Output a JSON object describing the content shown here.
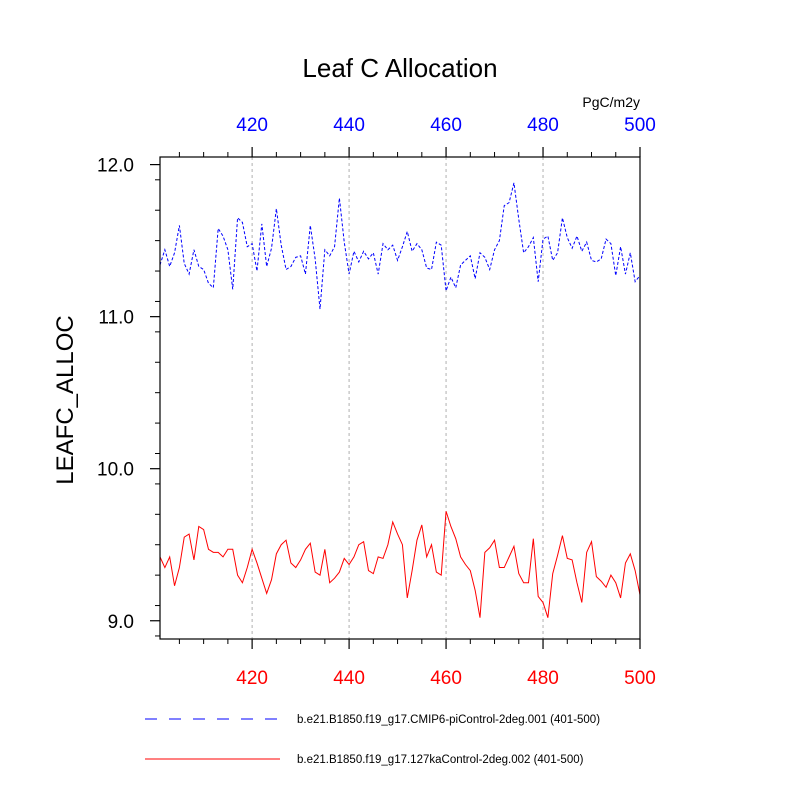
{
  "chart_data": {
    "type": "line",
    "title": "Leaf C Allocation",
    "ylabel": "LEAFC_ALLOC",
    "units_label": "PgC/m2y",
    "xlim": [
      401,
      500
    ],
    "ylim": [
      8.88,
      12.05
    ],
    "x_ticks": [
      420,
      440,
      460,
      480,
      500
    ],
    "x_tick_labels": [
      "420",
      "440",
      "460",
      "480",
      "500"
    ],
    "y_ticks": [
      9.0,
      10.0,
      11.0,
      12.0
    ],
    "y_tick_labels": [
      "9.0",
      "10.0",
      "11.0",
      "12.0"
    ],
    "colors": {
      "top_axis": "#0000ff",
      "bottom_axis": "#ff0000",
      "grid": "#b0b0b0",
      "axis": "#000000"
    },
    "series": [
      {
        "name": "b.e21.B1850.f19_g17.CMIP6-piControl-2deg.001 (401-500)",
        "color": "#0000ff",
        "dash": "dashed",
        "start_year": 401,
        "values": [
          11.34,
          11.44,
          11.33,
          11.42,
          11.6,
          11.35,
          11.28,
          11.44,
          11.33,
          11.31,
          11.22,
          11.19,
          11.58,
          11.53,
          11.44,
          11.18,
          11.65,
          11.62,
          11.46,
          11.48,
          11.3,
          11.61,
          11.33,
          11.45,
          11.71,
          11.47,
          11.31,
          11.33,
          11.39,
          11.4,
          11.28,
          11.6,
          11.38,
          11.05,
          11.44,
          11.4,
          11.46,
          11.78,
          11.49,
          11.28,
          11.43,
          11.36,
          11.43,
          11.38,
          11.42,
          11.28,
          11.48,
          11.44,
          11.47,
          11.37,
          11.46,
          11.56,
          11.43,
          11.48,
          11.44,
          11.32,
          11.31,
          11.49,
          11.47,
          11.17,
          11.26,
          11.19,
          11.34,
          11.37,
          11.4,
          11.25,
          11.42,
          11.39,
          11.31,
          11.44,
          11.5,
          11.73,
          11.75,
          11.88,
          11.64,
          11.42,
          11.46,
          11.52,
          11.23,
          11.51,
          11.53,
          11.37,
          11.42,
          11.65,
          11.52,
          11.45,
          11.53,
          11.43,
          11.49,
          11.37,
          11.36,
          11.38,
          11.51,
          11.48,
          11.27,
          11.46,
          11.28,
          11.42,
          11.23,
          11.27
        ]
      },
      {
        "name": "b.e21.B1850.f19_g17.127kaControl-2deg.002 (401-500)",
        "color": "#ff0000",
        "dash": "solid",
        "start_year": 401,
        "values": [
          9.42,
          9.35,
          9.42,
          9.23,
          9.35,
          9.55,
          9.57,
          9.4,
          9.62,
          9.6,
          9.47,
          9.45,
          9.45,
          9.42,
          9.47,
          9.47,
          9.3,
          9.25,
          9.35,
          9.47,
          9.38,
          9.28,
          9.18,
          9.27,
          9.44,
          9.5,
          9.53,
          9.38,
          9.35,
          9.4,
          9.47,
          9.51,
          9.32,
          9.3,
          9.47,
          9.25,
          9.28,
          9.32,
          9.41,
          9.37,
          9.42,
          9.5,
          9.52,
          9.33,
          9.31,
          9.42,
          9.41,
          9.5,
          9.65,
          9.57,
          9.5,
          9.15,
          9.33,
          9.53,
          9.63,
          9.42,
          9.5,
          9.32,
          9.3,
          9.72,
          9.62,
          9.54,
          9.42,
          9.37,
          9.33,
          9.2,
          9.02,
          9.45,
          9.48,
          9.53,
          9.35,
          9.35,
          9.42,
          9.49,
          9.31,
          9.25,
          9.25,
          9.54,
          9.16,
          9.12,
          9.02,
          9.31,
          9.43,
          9.56,
          9.41,
          9.4,
          9.25,
          9.12,
          9.45,
          9.52,
          9.29,
          9.26,
          9.22,
          9.3,
          9.25,
          9.15,
          9.38,
          9.44,
          9.33,
          9.17
        ]
      }
    ]
  }
}
